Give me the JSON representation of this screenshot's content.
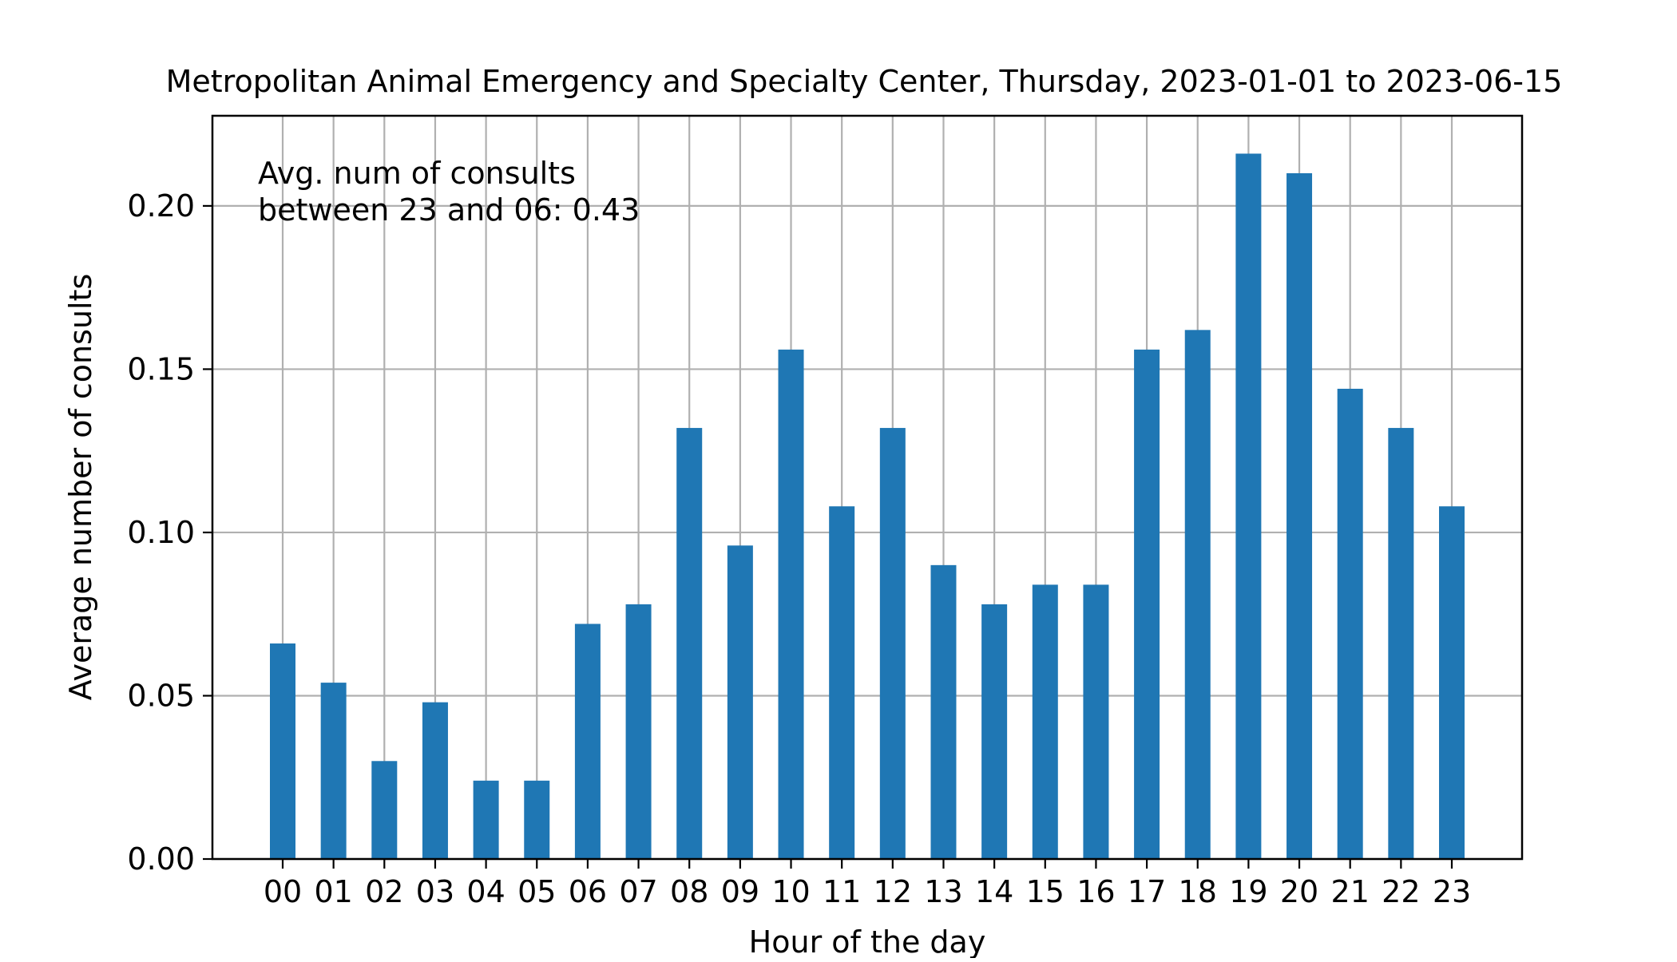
{
  "chart_data": {
    "type": "bar",
    "title": "Metropolitan Animal Emergency and Specialty Center, Thursday, 2023-01-01 to 2023-06-15",
    "xlabel": "Hour of the day",
    "ylabel": "Average number of consults",
    "annotation": [
      "Avg. num of consults",
      "between 23 and 06: 0.43"
    ],
    "categories": [
      "00",
      "01",
      "02",
      "03",
      "04",
      "05",
      "06",
      "07",
      "08",
      "09",
      "10",
      "11",
      "12",
      "13",
      "14",
      "15",
      "16",
      "17",
      "18",
      "19",
      "20",
      "21",
      "22",
      "23"
    ],
    "values": [
      0.066,
      0.054,
      0.03,
      0.048,
      0.024,
      0.024,
      0.072,
      0.078,
      0.132,
      0.096,
      0.156,
      0.108,
      0.132,
      0.09,
      0.078,
      0.084,
      0.084,
      0.156,
      0.162,
      0.216,
      0.21,
      0.144,
      0.132,
      0.108
    ],
    "ylim": [
      0,
      0.2276
    ],
    "yticks": [
      0.0,
      0.05,
      0.1,
      0.15,
      0.2
    ],
    "ytick_labels": [
      "0.00",
      "0.05",
      "0.10",
      "0.15",
      "0.20"
    ],
    "grid": true,
    "bar_color": "#1f77b4",
    "grid_color": "#b0b0b0"
  }
}
